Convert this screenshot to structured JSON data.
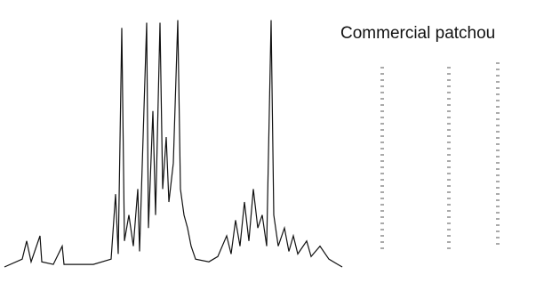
{
  "chart_data": {
    "type": "line",
    "title": "Commercial patchou",
    "x": [
      0,
      20,
      25,
      30,
      40,
      42,
      55,
      65,
      67,
      100,
      120,
      125,
      128,
      132,
      135,
      140,
      145,
      150,
      152,
      160,
      162,
      167,
      170,
      175,
      178,
      182,
      185,
      190,
      195,
      198,
      202,
      206,
      210,
      215,
      230,
      240,
      250,
      255,
      260,
      265,
      270,
      275,
      280,
      285,
      290,
      295,
      300,
      303,
      308,
      315,
      320,
      325,
      330,
      340,
      345,
      355,
      365,
      375,
      380
    ],
    "series": [
      {
        "color": "#111111",
        "values": [
          0,
          3,
          10,
          2,
          12,
          2,
          1,
          8,
          1,
          1,
          3,
          28,
          5,
          92,
          10,
          20,
          8,
          30,
          6,
          94,
          15,
          60,
          20,
          94,
          30,
          50,
          25,
          40,
          95,
          30,
          20,
          15,
          8,
          3,
          2,
          4,
          12,
          5,
          18,
          8,
          25,
          10,
          30,
          15,
          20,
          8,
          95,
          20,
          8,
          15,
          6,
          12,
          5,
          10,
          4,
          8,
          3,
          1,
          0
        ]
      }
    ],
    "xlim": [
      0,
      380
    ],
    "ylim": [
      0,
      100
    ]
  }
}
